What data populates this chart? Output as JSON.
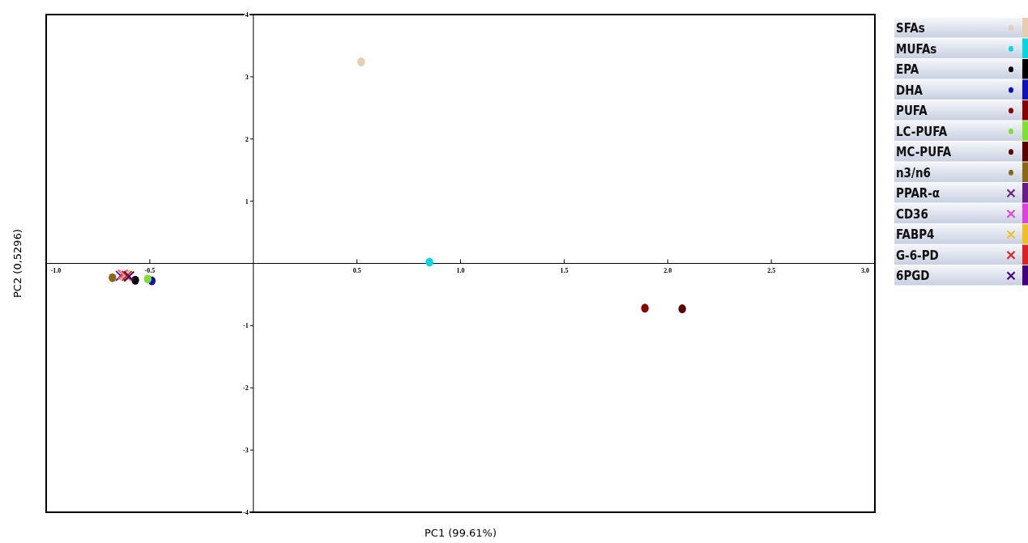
{
  "chart_data": {
    "type": "scatter",
    "xlabel": "PC1 (99.61%)",
    "ylabel": "PC2 (0,5296)",
    "xlim": [
      -1.0,
      3.0
    ],
    "xticks": [
      {
        "value": -1,
        "label": "-1.0"
      },
      {
        "value": -0.5,
        "label": "-0.5"
      },
      0.5,
      {
        "value": 1,
        "label": "1.0"
      },
      1.5,
      {
        "value": 2,
        "label": "2.0"
      },
      2.5,
      {
        "value": 3,
        "label": "3.0"
      }
    ],
    "ylim": [
      -4,
      4
    ],
    "yticks": [
      -4,
      -3,
      -2,
      -1,
      1,
      2,
      3,
      4
    ],
    "grid": false,
    "legend": "right",
    "series": [
      {
        "name": "SFAs",
        "color": "#e8cdb0",
        "marker": "circle",
        "x": [
          0.52
        ],
        "values": [
          3.24
        ]
      },
      {
        "name": "MUFAs",
        "color": "#00d8e0",
        "marker": "circle",
        "x": [
          0.85
        ],
        "values": [
          0.02
        ]
      },
      {
        "name": "EPA",
        "color": "#000000",
        "marker": "circle",
        "x": [
          -0.57
        ],
        "values": [
          -0.27
        ]
      },
      {
        "name": "DHA",
        "color": "#1010c0",
        "marker": "circle",
        "x": [
          -0.49
        ],
        "values": [
          -0.28
        ]
      },
      {
        "name": "PUFA",
        "color": "#8b0000",
        "marker": "circle",
        "x": [
          1.89
        ],
        "values": [
          -0.72
        ]
      },
      {
        "name": "LC-PUFA",
        "color": "#80e030",
        "marker": "circle",
        "x": [
          -0.51
        ],
        "values": [
          -0.25
        ]
      },
      {
        "name": "MC-PUFA",
        "color": "#5c0000",
        "marker": "circle",
        "x": [
          2.07
        ],
        "values": [
          -0.73
        ]
      },
      {
        "name": "n3/n6",
        "color": "#8b6914",
        "marker": "circle",
        "x": [
          -0.68
        ],
        "values": [
          -0.23
        ]
      },
      {
        "name": "PPAR-α",
        "color": "#6a1a8a",
        "marker": "cross",
        "x": [
          -0.64
        ],
        "values": [
          -0.2
        ]
      },
      {
        "name": "CD36",
        "color": "#e040e0",
        "marker": "cross",
        "x": [
          -0.63
        ],
        "values": [
          -0.18
        ]
      },
      {
        "name": "FABP4",
        "color": "#f0c020",
        "marker": "cross",
        "x": [
          -0.62
        ],
        "values": [
          -0.19
        ]
      },
      {
        "name": "G-6-PD",
        "color": "#e02020",
        "marker": "cross",
        "x": [
          -0.61
        ],
        "values": [
          -0.2
        ]
      },
      {
        "name": "6PGD",
        "color": "#400080",
        "marker": "cross",
        "x": [
          -0.6
        ],
        "values": [
          -0.21
        ]
      }
    ]
  }
}
